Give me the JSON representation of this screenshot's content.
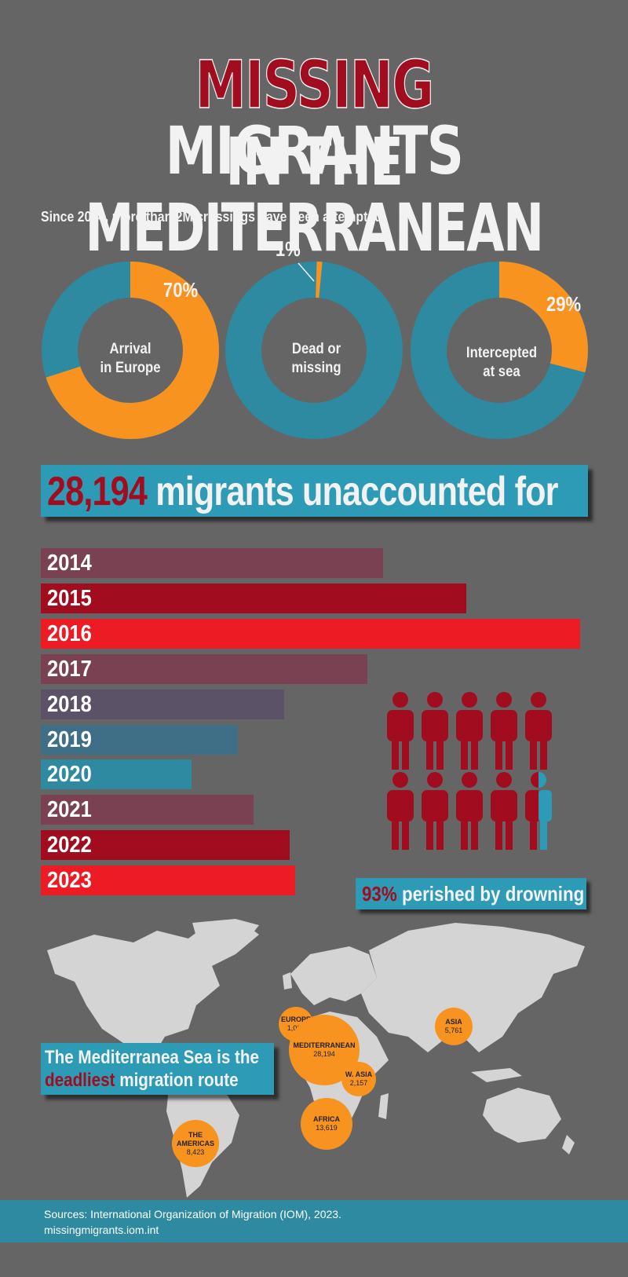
{
  "title": {
    "part1": "MISSING",
    "part2": "MIGRANTS",
    "line2": "IN THE MEDITERRANEAN"
  },
  "subtitle": "Since 2014, more than 2M crossings have been attempted:",
  "colors": {
    "orange": "#f7931e",
    "teal": "#2d8aa0",
    "dark_red": "#a10d1f",
    "bright_red": "#ed1c24"
  },
  "donuts": [
    {
      "label_line1": "Arrival",
      "label_line2": "in Europe",
      "value_label": "70%",
      "value": 70
    },
    {
      "label_line1": "Dead or",
      "label_line2": "missing",
      "value_label": "1%",
      "value": 1
    },
    {
      "label_line1": "Intercepted",
      "label_line2": "at sea",
      "value_label": "29%",
      "value": 29
    }
  ],
  "banner": {
    "number": "28,194",
    "text": "migrants unaccounted for"
  },
  "chart_data": {
    "type": "bar",
    "categories": [
      "2014",
      "2015",
      "2016",
      "2017",
      "2018",
      "2019",
      "2020",
      "2021",
      "2022",
      "2023"
    ],
    "values": [
      3300,
      4100,
      5200,
      3150,
      2350,
      1900,
      1450,
      2050,
      2400,
      2450
    ],
    "bar_colors": [
      "#7a4152",
      "#a10d1f",
      "#ed1c24",
      "#7a4152",
      "#5c5268",
      "#3e6f86",
      "#2d8aa0",
      "#7a4152",
      "#a10d1f",
      "#ed1c24"
    ]
  },
  "drowning": {
    "number": "93%",
    "text": "perished by drowning",
    "icons_total": 10,
    "share": 0.93
  },
  "route": {
    "line1": "The Mediterranea Sea is the",
    "highlight": "deadliest",
    "line2_rest": "migration route"
  },
  "regions": [
    {
      "name": "EUROPE",
      "value": "1,066"
    },
    {
      "name": "MEDITERRANEAN",
      "value": "28,194"
    },
    {
      "name": "W. ASIA",
      "value": "2,157"
    },
    {
      "name": "ASIA",
      "value": "5,761"
    },
    {
      "name": "AFRICA",
      "value": "13,619"
    },
    {
      "name": "THE AMERICAS",
      "value": "8,423"
    }
  ],
  "footer": {
    "line1": "Sources: International Organization of Migration (IOM), 2023.",
    "line2": "missingmigrants.iom.int"
  }
}
